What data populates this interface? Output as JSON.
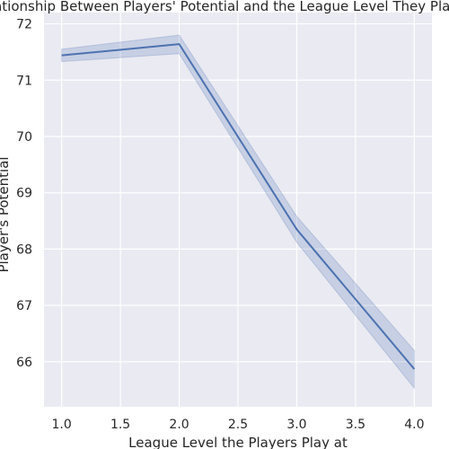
{
  "chart_data": {
    "type": "line",
    "title": "Relationship Between Players' Potential and the League Level They Play at",
    "xlabel": "League Level the Players Play at",
    "ylabel": "Player's Potential",
    "xlim": [
      0.85,
      4.15
    ],
    "ylim": [
      65.2,
      72.2
    ],
    "x_ticks": [
      1.0,
      1.5,
      2.0,
      2.5,
      3.0,
      3.5,
      4.0
    ],
    "x_tick_labels": [
      "1.0",
      "1.5",
      "2.0",
      "2.5",
      "3.0",
      "3.5",
      "4.0"
    ],
    "y_ticks": [
      66,
      67,
      68,
      69,
      70,
      71,
      72
    ],
    "y_tick_labels": [
      "66",
      "67",
      "68",
      "69",
      "70",
      "71",
      "72"
    ],
    "grid": true,
    "series": [
      {
        "x": [
          1.0,
          2.0,
          3.0,
          4.0
        ],
        "values": [
          71.44,
          71.64,
          68.35,
          65.87
        ],
        "ci_lower": [
          71.33,
          71.47,
          68.12,
          65.53
        ],
        "ci_upper": [
          71.55,
          71.8,
          68.58,
          66.2
        ],
        "color": "#4c72b0"
      }
    ],
    "colors": {
      "background": "#eaeaf2",
      "grid": "#ffffff",
      "line": "#4c72b0",
      "band": "#4c72b0"
    }
  }
}
